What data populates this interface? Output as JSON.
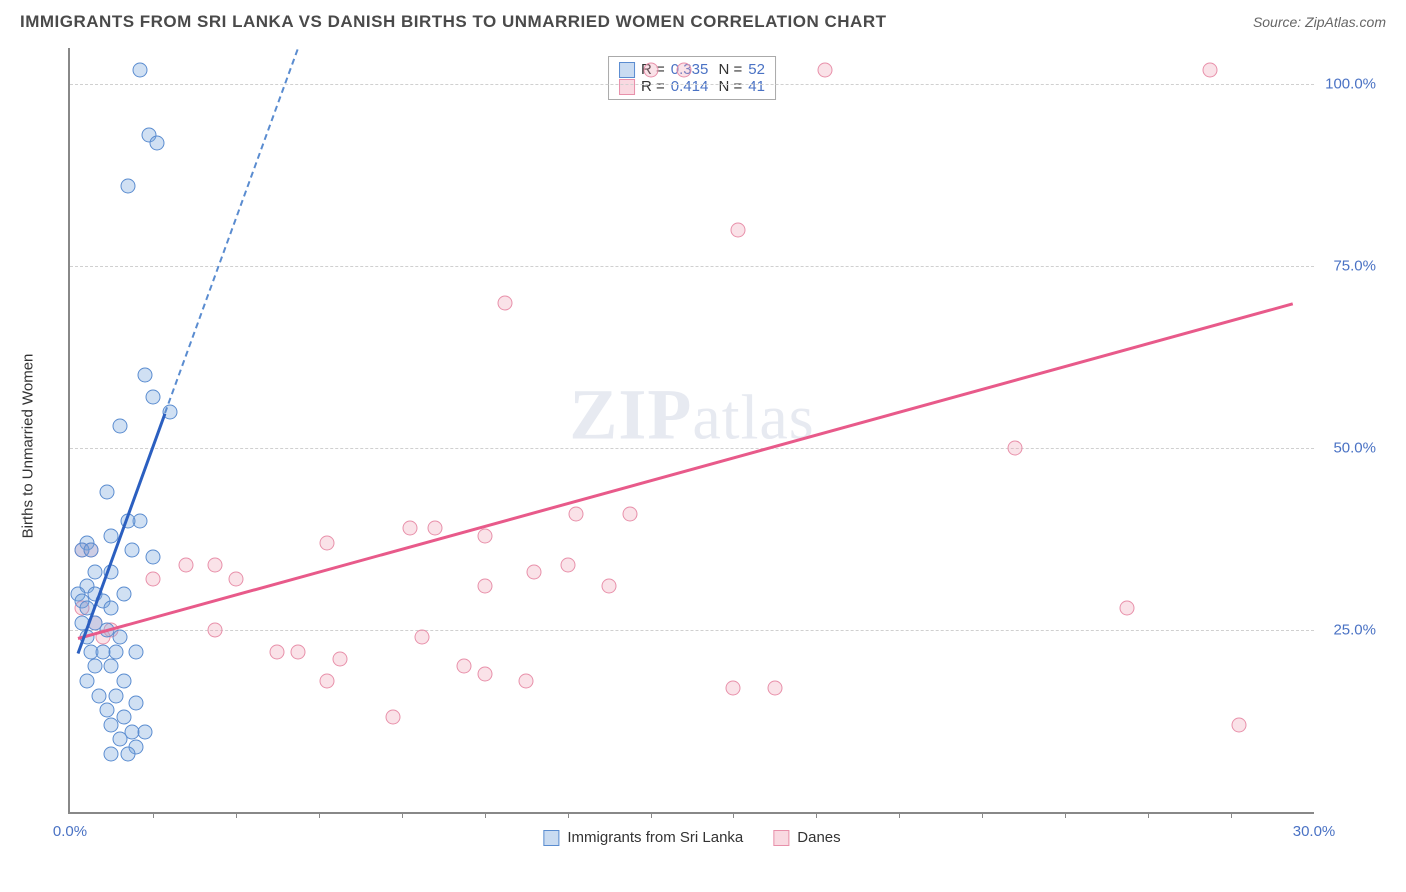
{
  "header": {
    "title": "IMMIGRANTS FROM SRI LANKA VS DANISH BIRTHS TO UNMARRIED WOMEN CORRELATION CHART",
    "source_label": "Source: ZipAtlas.com"
  },
  "watermark": {
    "text_bold": "ZIP",
    "text_light": "atlas"
  },
  "chart": {
    "type": "scatter",
    "ylabel": "Births to Unmarried Women",
    "xlim": [
      0,
      30
    ],
    "ylim": [
      0,
      105
    ],
    "yticks": [
      25,
      50,
      75,
      100
    ],
    "ytick_labels": [
      "25.0%",
      "50.0%",
      "75.0%",
      "100.0%"
    ],
    "xticks_minor": [
      2,
      4,
      6,
      8,
      10,
      12,
      14,
      16,
      18,
      20,
      22,
      24,
      26,
      28
    ],
    "xtick_labels": [
      {
        "pos": 0,
        "label": "0.0%"
      },
      {
        "pos": 30,
        "label": "30.0%"
      }
    ],
    "grid_color": "#d0d0d0",
    "axis_color": "#888888",
    "background_color": "#ffffff",
    "series": [
      {
        "name": "Immigrants from Sri Lanka",
        "color_fill": "rgba(120,165,220,0.35)",
        "color_stroke": "#5a8cd0",
        "marker_size": 15,
        "R": "0.335",
        "N": "52",
        "trend_solid": {
          "x1": 0.2,
          "y1": 22,
          "x2": 2.3,
          "y2": 55,
          "color": "#2b5fc0"
        },
        "trend_dashed": {
          "x1": 2.3,
          "y1": 55,
          "x2": 5.5,
          "y2": 105,
          "color": "#5a8cd0"
        },
        "points": [
          [
            1.7,
            102
          ],
          [
            1.9,
            93
          ],
          [
            2.1,
            92
          ],
          [
            1.4,
            86
          ],
          [
            1.8,
            60
          ],
          [
            2.0,
            57
          ],
          [
            2.4,
            55
          ],
          [
            1.2,
            53
          ],
          [
            0.9,
            44
          ],
          [
            1.7,
            40
          ],
          [
            1.4,
            40
          ],
          [
            1.0,
            38
          ],
          [
            0.4,
            37
          ],
          [
            0.3,
            36
          ],
          [
            0.5,
            36
          ],
          [
            1.5,
            36
          ],
          [
            2.0,
            35
          ],
          [
            0.6,
            33
          ],
          [
            1.0,
            33
          ],
          [
            0.4,
            31
          ],
          [
            0.2,
            30
          ],
          [
            0.6,
            30
          ],
          [
            1.3,
            30
          ],
          [
            0.3,
            29
          ],
          [
            0.8,
            29
          ],
          [
            0.4,
            28
          ],
          [
            1.0,
            28
          ],
          [
            0.3,
            26
          ],
          [
            0.6,
            26
          ],
          [
            0.9,
            25
          ],
          [
            0.4,
            24
          ],
          [
            1.2,
            24
          ],
          [
            0.5,
            22
          ],
          [
            0.8,
            22
          ],
          [
            1.1,
            22
          ],
          [
            1.6,
            22
          ],
          [
            0.6,
            20
          ],
          [
            1.0,
            20
          ],
          [
            0.4,
            18
          ],
          [
            1.3,
            18
          ],
          [
            0.7,
            16
          ],
          [
            1.1,
            16
          ],
          [
            1.6,
            15
          ],
          [
            0.9,
            14
          ],
          [
            1.3,
            13
          ],
          [
            1.0,
            12
          ],
          [
            1.5,
            11
          ],
          [
            1.8,
            11
          ],
          [
            1.2,
            10
          ],
          [
            1.6,
            9
          ],
          [
            1.0,
            8
          ],
          [
            1.4,
            8
          ]
        ]
      },
      {
        "name": "Danes",
        "color_fill": "rgba(240,160,180,0.3)",
        "color_stroke": "#e890aa",
        "marker_size": 15,
        "R": "0.414",
        "N": "41",
        "trend_solid": {
          "x1": 0.2,
          "y1": 24,
          "x2": 29.5,
          "y2": 70,
          "color": "#e85a8a"
        },
        "points": [
          [
            14.0,
            102
          ],
          [
            14.8,
            102
          ],
          [
            18.2,
            102
          ],
          [
            27.5,
            102
          ],
          [
            16.1,
            80
          ],
          [
            10.5,
            70
          ],
          [
            22.8,
            50
          ],
          [
            12.2,
            41
          ],
          [
            13.5,
            41
          ],
          [
            8.2,
            39
          ],
          [
            8.8,
            39
          ],
          [
            10.0,
            38
          ],
          [
            6.2,
            37
          ],
          [
            0.3,
            36
          ],
          [
            0.5,
            36
          ],
          [
            2.8,
            34
          ],
          [
            3.5,
            34
          ],
          [
            12.0,
            34
          ],
          [
            11.2,
            33
          ],
          [
            2.0,
            32
          ],
          [
            4.0,
            32
          ],
          [
            10.0,
            31
          ],
          [
            13.0,
            31
          ],
          [
            0.3,
            28
          ],
          [
            25.5,
            28
          ],
          [
            0.6,
            26
          ],
          [
            1.0,
            25
          ],
          [
            3.5,
            25
          ],
          [
            8.5,
            24
          ],
          [
            5.0,
            22
          ],
          [
            5.5,
            22
          ],
          [
            6.5,
            21
          ],
          [
            9.5,
            20
          ],
          [
            10.0,
            19
          ],
          [
            11.0,
            18
          ],
          [
            6.2,
            18
          ],
          [
            16.0,
            17
          ],
          [
            17.0,
            17
          ],
          [
            7.8,
            13
          ],
          [
            28.2,
            12
          ],
          [
            0.8,
            24
          ]
        ]
      }
    ],
    "legend_bottom": [
      {
        "swatch": "blue",
        "label": "Immigrants from Sri Lanka"
      },
      {
        "swatch": "pink",
        "label": "Danes"
      }
    ]
  }
}
